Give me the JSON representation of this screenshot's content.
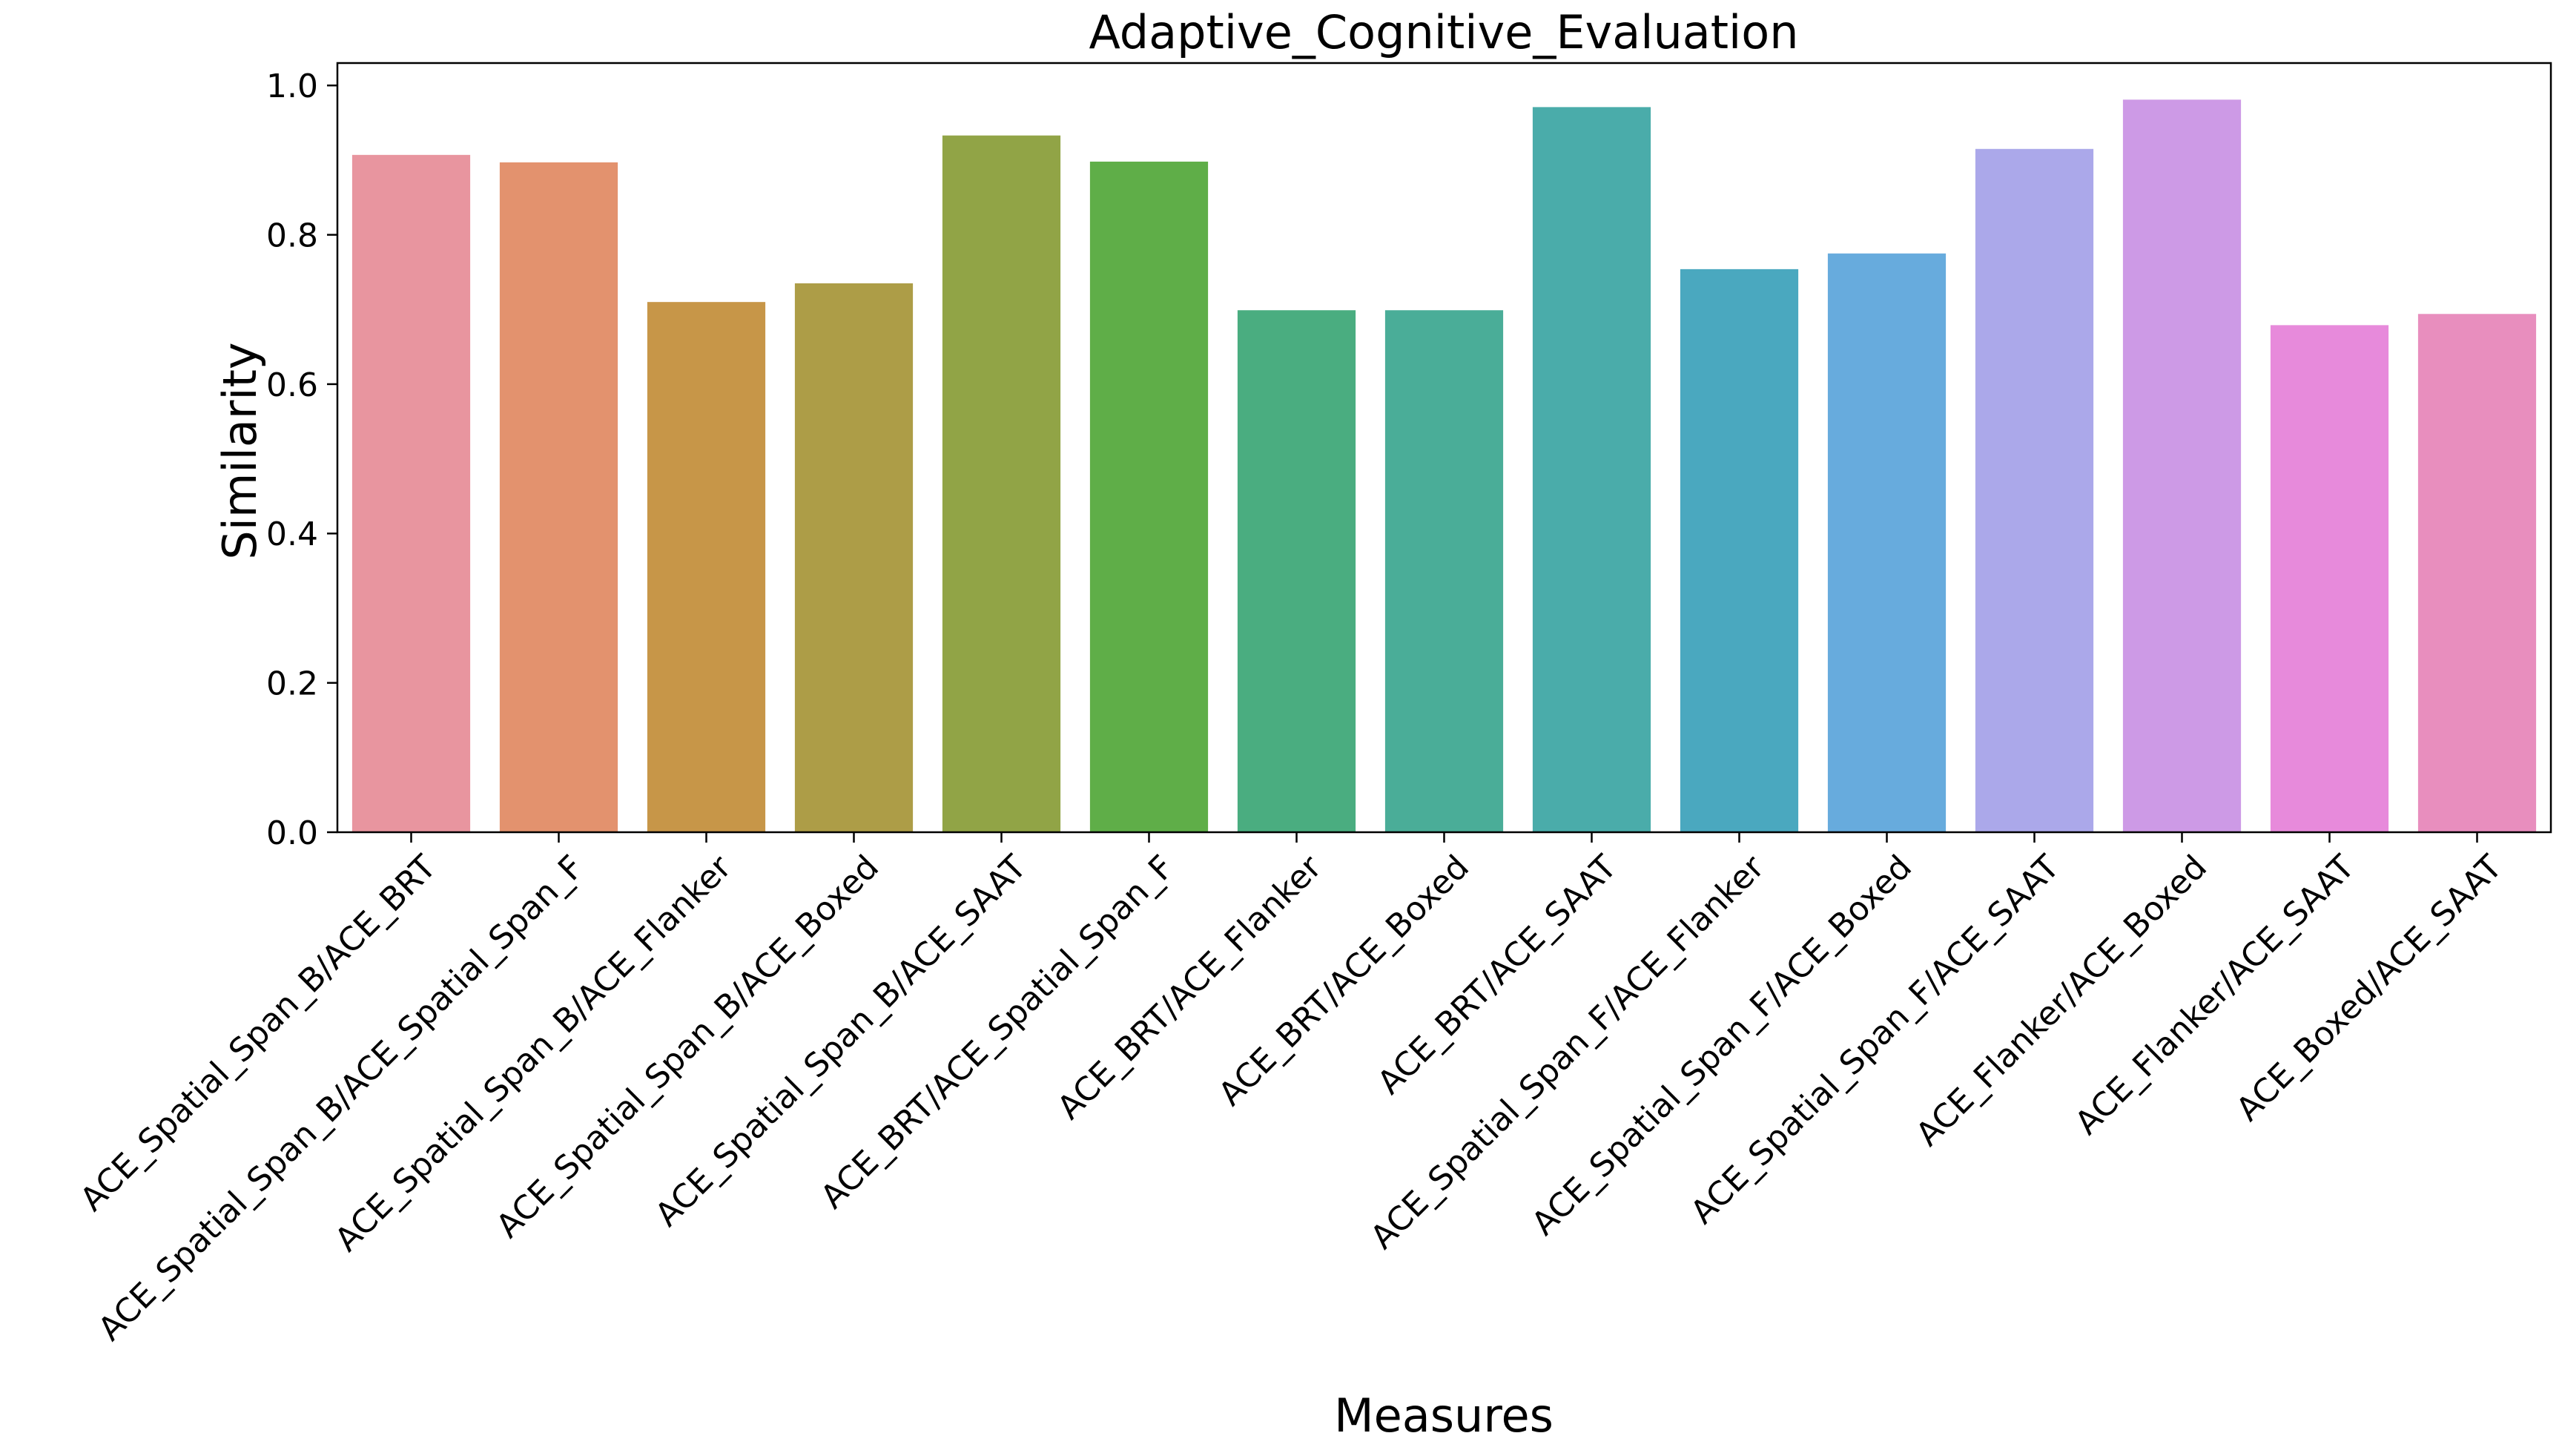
{
  "chart_data": {
    "type": "bar",
    "title": "Adaptive_Cognitive_Evaluation",
    "xlabel": "Measures",
    "ylabel": "Similarity",
    "ylim": [
      0,
      1.03
    ],
    "yticks": [
      "0.0",
      "0.2",
      "0.4",
      "0.6",
      "0.8",
      "1.0"
    ],
    "grid": false,
    "categories": [
      "ACE_Spatial_Span_B/ACE_BRT",
      "ACE_Spatial_Span_B/ACE_Spatial_Span_F",
      "ACE_Spatial_Span_B/ACE_Flanker",
      "ACE_Spatial_Span_B/ACE_Boxed",
      "ACE_Spatial_Span_B/ACE_SAAT",
      "ACE_BRT/ACE_Spatial_Span_F",
      "ACE_BRT/ACE_Flanker",
      "ACE_BRT/ACE_Boxed",
      "ACE_BRT/ACE_SAAT",
      "ACE_Spatial_Span_F/ACE_Flanker",
      "ACE_Spatial_Span_F/ACE_Boxed",
      "ACE_Spatial_Span_F/ACE_SAAT",
      "ACE_Flanker/ACE_Boxed",
      "ACE_Flanker/ACE_SAAT",
      "ACE_Boxed/ACE_SAAT"
    ],
    "values": [
      0.907,
      0.897,
      0.71,
      0.735,
      0.933,
      0.898,
      0.699,
      0.699,
      0.971,
      0.754,
      0.775,
      0.915,
      0.981,
      0.679,
      0.694
    ],
    "colors": [
      "#E8959F",
      "#E3926E",
      "#C79648",
      "#AD9D47",
      "#91A446",
      "#5FAE48",
      "#4AAD80",
      "#4AAD98",
      "#4AACAA",
      "#4AA8BF",
      "#67ABDD",
      "#ABA8EA",
      "#CD9AE6",
      "#E78ADB",
      "#E88EBE"
    ]
  }
}
